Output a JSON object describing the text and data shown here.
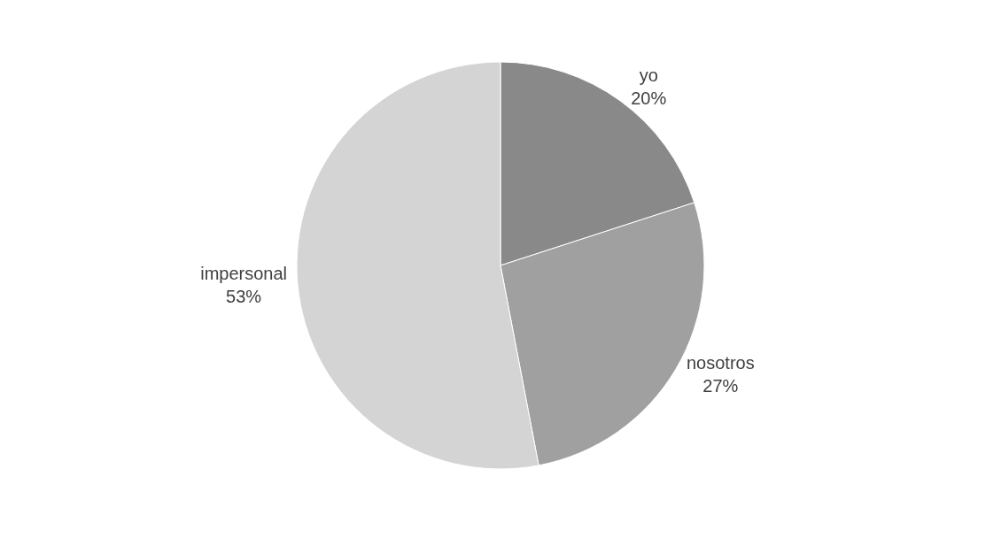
{
  "chart_data": {
    "type": "pie",
    "categories": [
      "yo",
      "nosotros",
      "impersonal"
    ],
    "values": [
      20,
      27,
      53
    ],
    "value_labels": [
      "20%",
      "27%",
      "53%"
    ],
    "colors": [
      "#898989",
      "#a0a0a0",
      "#d4d4d4"
    ],
    "legend": false
  }
}
